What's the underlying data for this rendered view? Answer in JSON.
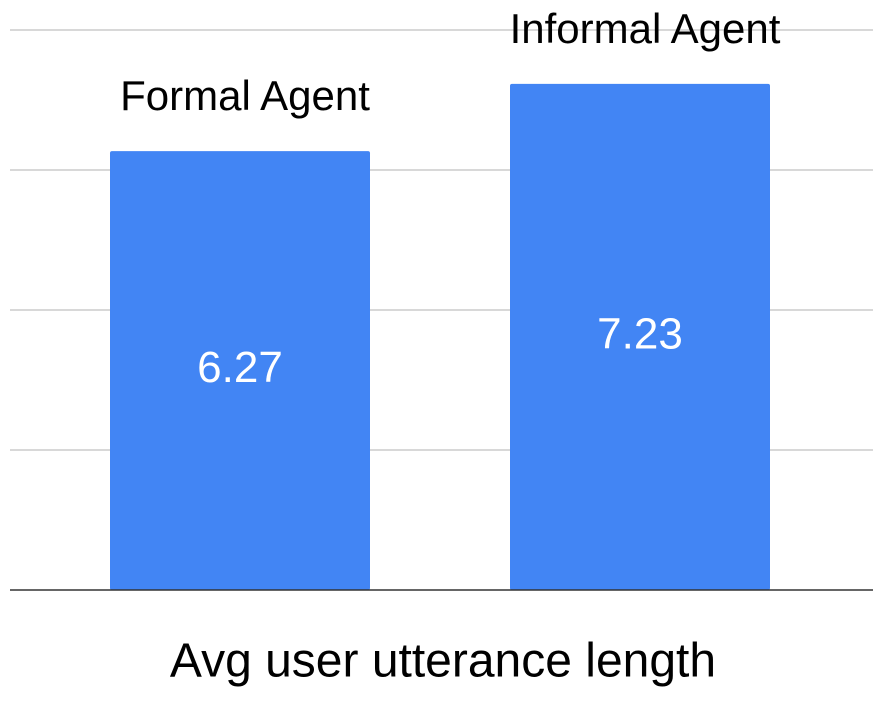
{
  "chart_data": {
    "type": "bar",
    "x_label": "Avg user utterance length",
    "categories": [
      "Formal Agent",
      "Informal Agent"
    ],
    "values": [
      6.27,
      7.23
    ],
    "color": "#4285f4",
    "ylim": [
      0,
      8
    ],
    "yticks": [
      0,
      2,
      4,
      6,
      8
    ],
    "grid": true
  }
}
